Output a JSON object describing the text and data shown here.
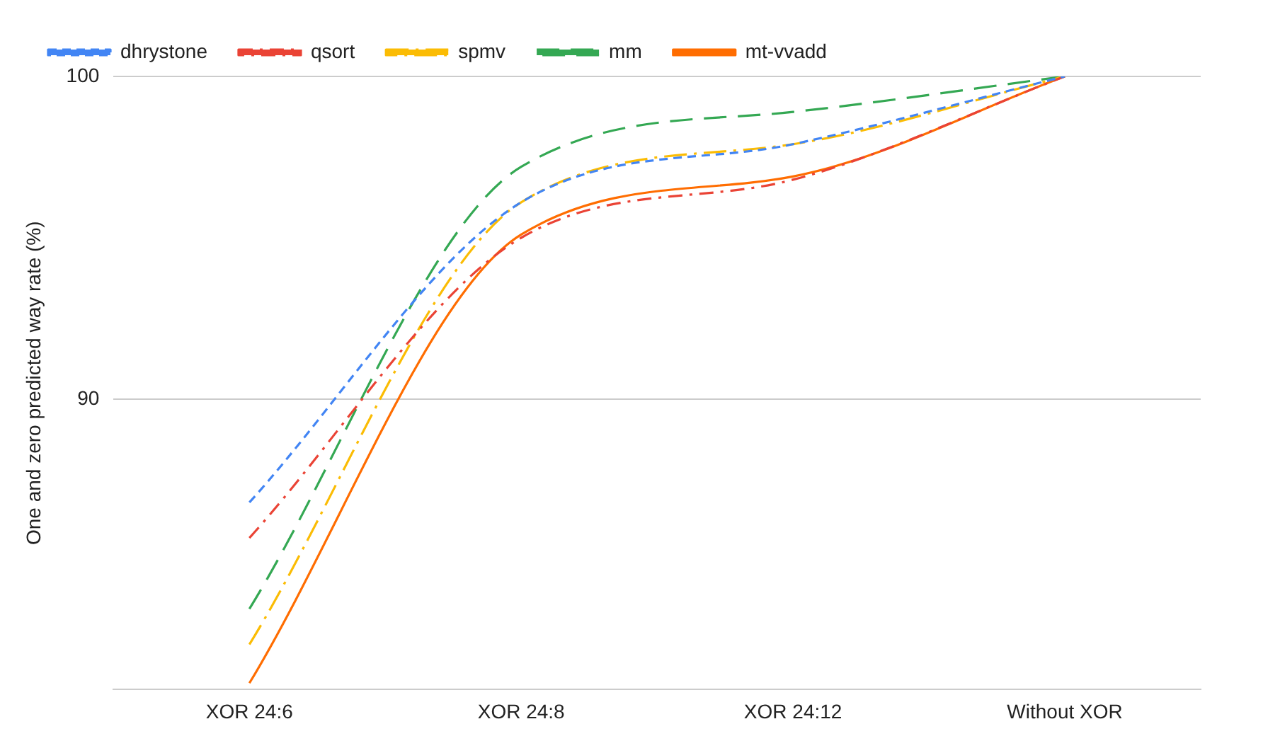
{
  "chart_data": {
    "type": "line",
    "ylabel": "One and zero predicted way rate (%)",
    "categories": [
      "XOR 24:6",
      "XOR 24:8",
      "XOR 24:12",
      "Without XOR"
    ],
    "series": [
      {
        "name": "dhrystone",
        "color": "#4285f4",
        "line_style": "dashed",
        "values": [
          86.8,
          96.1,
          97.9,
          100
        ]
      },
      {
        "name": "qsort",
        "color": "#ea4335",
        "line_style": "dashed",
        "values": [
          85.7,
          95.0,
          96.8,
          100
        ]
      },
      {
        "name": "spmv",
        "color": "#fbbc04",
        "line_style": "dashed",
        "values": [
          82.4,
          96.1,
          97.9,
          100
        ]
      },
      {
        "name": "mm",
        "color": "#34a853",
        "line_style": "dashed",
        "values": [
          83.5,
          97.2,
          98.9,
          100
        ]
      },
      {
        "name": "mt-vvadd",
        "color": "#ff6d01",
        "line_style": "solid",
        "values": [
          81.2,
          95.1,
          96.9,
          100
        ]
      }
    ],
    "ylim": [
      81,
      100
    ],
    "yticks": [
      90,
      100
    ],
    "grid": "y",
    "legend": "top",
    "marker": "none"
  }
}
